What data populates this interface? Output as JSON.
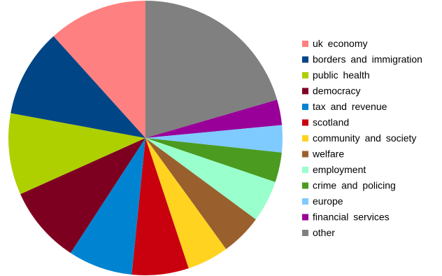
{
  "chart_data": {
    "type": "pie",
    "title": "",
    "legend_position": "right",
    "start_angle_deg": 0,
    "direction": "clockwise",
    "unit": "percent",
    "categories": [
      "other",
      "financial services",
      "europe",
      "crime and policing",
      "employment",
      "welfare",
      "community and society",
      "scotland",
      "tax and revenue",
      "democracy",
      "public health",
      "borders and immigration",
      "uk economy"
    ],
    "values": [
      20.5,
      3.0,
      3.2,
      3.5,
      4.9,
      4.9,
      4.9,
      6.7,
      7.6,
      9.1,
      9.6,
      10.4,
      11.7
    ],
    "colors": [
      "#808080",
      "#990099",
      "#7fcaff",
      "#4a9b1f",
      "#99ffcc",
      "#99602e",
      "#ffd320",
      "#c9000e",
      "#0084d1",
      "#7e0021",
      "#aecf00",
      "#004586",
      "#ff8080"
    ],
    "legend_order": [
      "uk economy",
      "borders and immigration",
      "public health",
      "democracy",
      "tax and revenue",
      "scotland",
      "community and society",
      "welfare",
      "employment",
      "crime and policing",
      "europe",
      "financial services",
      "other"
    ]
  }
}
